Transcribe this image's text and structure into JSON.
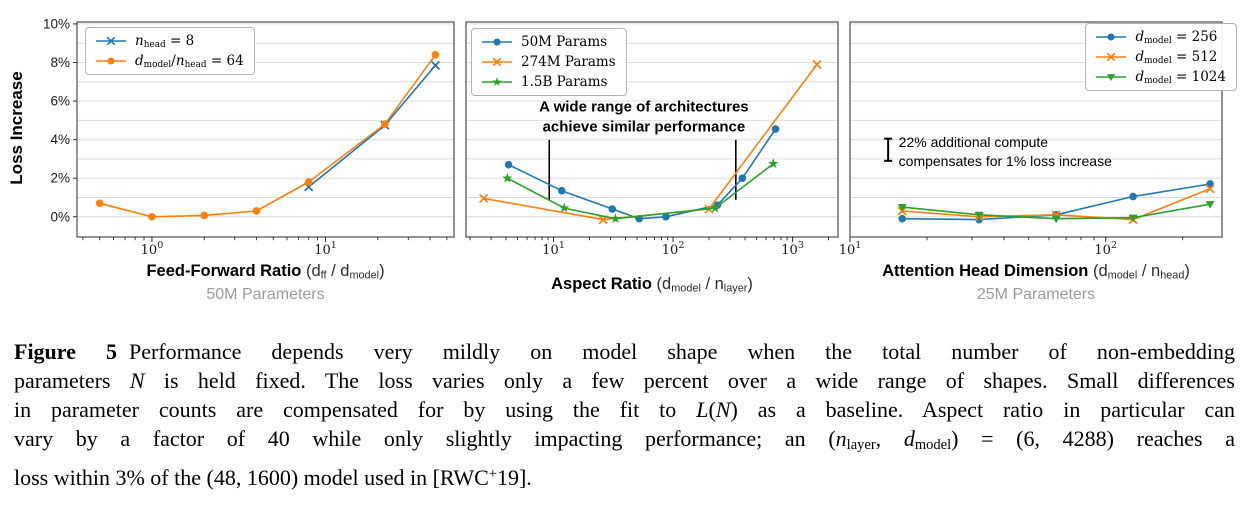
{
  "figure": {
    "ylabel": "Loss Increase"
  },
  "chart_data": [
    {
      "id": "feed-forward-ratio",
      "type": "line",
      "xscale": "log",
      "xlim": [
        0.37,
        55
      ],
      "ylim": [
        -1.05,
        10.1
      ],
      "xticks": [
        1,
        10
      ],
      "xtick_labels": [
        "10^0",
        "10^1"
      ],
      "yticks": [
        0,
        2,
        4,
        6,
        8,
        10
      ],
      "ytick_labels": [
        "0%",
        "2%",
        "4%",
        "6%",
        "8%",
        "10%"
      ],
      "grid_step": 1,
      "xlabel_plain": "Feed-Forward Ratio (dff / dmodel)",
      "xlabel_runs": [
        {
          "t": "Feed-Forward Ratio",
          "b": true
        },
        {
          "t": " (d"
        },
        {
          "t": "ff",
          "sub": true
        },
        {
          "t": " / d"
        },
        {
          "t": "model",
          "sub": true
        },
        {
          "t": ")"
        }
      ],
      "subtitle": "50M Parameters",
      "series": [
        {
          "name": "n_head = 8",
          "color": "#1f77b4",
          "marker": "x",
          "x": [
            8,
            22,
            43
          ],
          "y": [
            1.55,
            4.75,
            7.85
          ],
          "label_runs": [
            {
              "t": "n",
              "i": true
            },
            {
              "t": "head",
              "sub": true
            },
            {
              "t": " = 8"
            }
          ]
        },
        {
          "name": "d_model/n_head = 64",
          "color": "#ff7f0e",
          "marker": "o",
          "x": [
            0.5,
            1,
            2,
            4,
            8,
            22,
            43
          ],
          "y": [
            0.7,
            0.0,
            0.07,
            0.3,
            1.8,
            4.8,
            8.4
          ],
          "label_runs": [
            {
              "t": "d",
              "i": true
            },
            {
              "t": "model",
              "sub": true
            },
            {
              "t": "/"
            },
            {
              "t": "n",
              "i": true
            },
            {
              "t": "head",
              "sub": true
            },
            {
              "t": " = 64"
            }
          ]
        }
      ]
    },
    {
      "id": "aspect-ratio",
      "type": "line",
      "xscale": "log",
      "xlim": [
        1.85,
        2400
      ],
      "ylim": [
        -1.05,
        10.1
      ],
      "xticks": [
        10,
        100,
        1000
      ],
      "xtick_labels": [
        "10^1",
        "10^2",
        "10^3"
      ],
      "yticks": [],
      "ytick_labels": null,
      "grid_step": 1,
      "xlabel_plain": "Aspect Ratio (dmodel / nlayer)",
      "xlabel_runs": [
        {
          "t": "Aspect Ratio",
          "b": true
        },
        {
          "t": " (d"
        },
        {
          "t": "model",
          "sub": true
        },
        {
          "t": " / n"
        },
        {
          "t": "layer",
          "sub": true
        },
        {
          "t": ")"
        }
      ],
      "subtitle": null,
      "series": [
        {
          "name": "50M Params",
          "color": "#1f77b4",
          "marker": "o",
          "x": [
            4.2,
            11.7,
            31,
            52,
            87,
            235,
            380,
            720
          ],
          "y": [
            2.7,
            1.35,
            0.4,
            -0.1,
            0.0,
            0.6,
            2.0,
            4.55
          ],
          "label_runs": [
            {
              "t": "50M Params"
            }
          ]
        },
        {
          "name": "274M Params",
          "color": "#ff7f0e",
          "marker": "x",
          "x": [
            2.6,
            26,
            200,
            1600
          ],
          "y": [
            0.95,
            -0.15,
            0.4,
            7.9
          ],
          "label_runs": [
            {
              "t": "274M Params"
            }
          ]
        },
        {
          "name": "1.5B Params",
          "color": "#2ca02c",
          "marker": "star",
          "x": [
            4.1,
            12.3,
            33,
            225,
            690
          ],
          "y": [
            2.0,
            0.45,
            -0.1,
            0.45,
            2.75
          ],
          "label_runs": [
            {
              "t": "1.5B Params"
            }
          ]
        }
      ],
      "vlines": [
        {
          "x": 9.2,
          "y1": 0.88,
          "y2": 3.99
        },
        {
          "x": 335,
          "y1": 0.88,
          "y2": 3.99
        }
      ],
      "annotations": [
        {
          "lines": [
            "A wide range of architectures",
            "achieve similar performance"
          ],
          "x": 57,
          "y": 5.45,
          "align": "center",
          "bold": true
        }
      ]
    },
    {
      "id": "attention-head-dimension",
      "type": "line",
      "xscale": "log",
      "xlim": [
        10,
        285
      ],
      "ylim": [
        -1.05,
        10.1
      ],
      "xticks": [
        10,
        100
      ],
      "xtick_labels": [
        "10^1",
        "10^2"
      ],
      "yticks": [],
      "ytick_labels": null,
      "grid_step": 1,
      "xlabel_plain": "Attention Head Dimension (dmodel / nhead)",
      "xlabel_runs": [
        {
          "t": "Attention Head Dimension",
          "b": true
        },
        {
          "t": " (d"
        },
        {
          "t": "model",
          "sub": true
        },
        {
          "t": " / n"
        },
        {
          "t": "head",
          "sub": true
        },
        {
          "t": ")"
        }
      ],
      "subtitle": "25M Parameters",
      "series": [
        {
          "name": "d_model = 256",
          "color": "#1f77b4",
          "marker": "o",
          "x": [
            16,
            32,
            64,
            128,
            256
          ],
          "y": [
            -0.1,
            -0.15,
            0.1,
            1.05,
            1.7
          ],
          "label_runs": [
            {
              "t": "d",
              "i": true
            },
            {
              "t": "model",
              "sub": true
            },
            {
              "t": " = 256"
            }
          ]
        },
        {
          "name": "d_model = 512",
          "color": "#ff7f0e",
          "marker": "x",
          "x": [
            16,
            32,
            64,
            128,
            256
          ],
          "y": [
            0.3,
            0.0,
            0.1,
            -0.15,
            1.45
          ],
          "label_runs": [
            {
              "t": "d",
              "i": true
            },
            {
              "t": "model",
              "sub": true
            },
            {
              "t": " = 512"
            }
          ]
        },
        {
          "name": "d_model = 1024",
          "color": "#2ca02c",
          "marker": "tri-down",
          "x": [
            16,
            32,
            64,
            128,
            256
          ],
          "y": [
            0.5,
            0.1,
            -0.1,
            -0.05,
            0.65
          ],
          "label_runs": [
            {
              "t": "d",
              "i": true
            },
            {
              "t": "model",
              "sub": true
            },
            {
              "t": " = 1024"
            }
          ]
        }
      ],
      "errorbar": {
        "x": 14.1,
        "y1": 2.9,
        "y2": 4.05
      },
      "annotations": [
        {
          "lines": [
            "22% additional compute",
            "compensates for 1% loss increase"
          ],
          "x": 15.5,
          "y": 3.63,
          "align": "left",
          "bold": false
        }
      ]
    }
  ],
  "caption": {
    "label": "Figure 5",
    "plain": "Figure 5  Performance depends very mildly on model shape when the total number of non-embedding parameters N is held fixed. The loss varies only a few percent over a wide range of shapes. Small differences in parameter counts are compensated for by using the fit to L(N) as a baseline. Aspect ratio in particular can vary by a factor of 40 while only slightly impacting performance; an (n_layer, d_model) = (6, 4288) reaches a loss within 3% of the (48, 1600) model used in [RWC+19].",
    "lines": [
      [
        {
          "t": "Figure 5",
          "b": true
        },
        {
          "gap": true
        },
        {
          "t": "Performance depends very mildly on model shape when the total number of non-embedding"
        }
      ],
      [
        {
          "t": "parameters "
        },
        {
          "t": "N",
          "i": true
        },
        {
          "t": " is held fixed. The loss varies only a few percent over a wide range of shapes. Small differences"
        }
      ],
      [
        {
          "t": "in parameter counts are compensated for by using the fit to "
        },
        {
          "t": "L",
          "i": true
        },
        {
          "t": "("
        },
        {
          "t": "N",
          "i": true
        },
        {
          "t": ") as a baseline. Aspect ratio in particular can"
        }
      ],
      [
        {
          "t": "vary by a factor of 40 while only slightly impacting performance; an ("
        },
        {
          "t": "n",
          "i": true
        },
        {
          "t": "layer",
          "sub": true
        },
        {
          "t": ", "
        },
        {
          "t": "d",
          "i": true
        },
        {
          "t": "model",
          "sub": true
        },
        {
          "t": ") = (6, 4288) reaches a"
        }
      ],
      [
        {
          "t": "loss within 3% of the (48, 1600) model used in [RWC"
        },
        {
          "t": "+",
          "sup": true
        },
        {
          "t": "19]."
        }
      ]
    ]
  }
}
